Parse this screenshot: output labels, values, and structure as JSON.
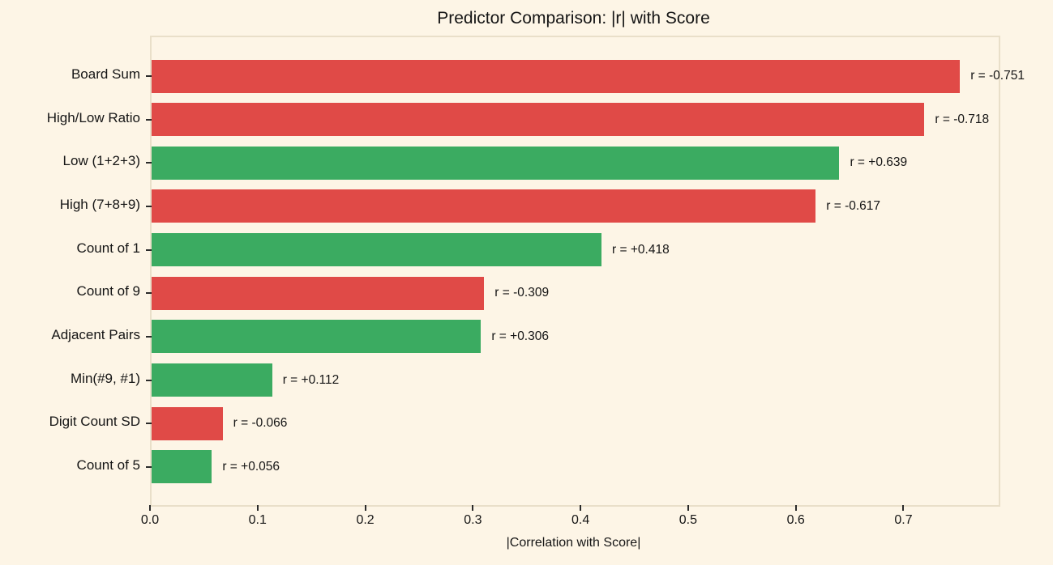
{
  "title": "Predictor Comparison: |r| with Score",
  "colors": {
    "positive_bar": "#3bab61",
    "negative_bar": "#e04a47",
    "background": "#fdf5e6",
    "plot_border": "#e9dfc9",
    "text": "#151515"
  },
  "chart_data": {
    "type": "bar",
    "orientation": "horizontal",
    "title": "Predictor Comparison: |r| with Score",
    "xlabel": "|Correlation with Score|",
    "ylabel": "",
    "xlim": [
      0.0,
      0.787
    ],
    "xticks": [
      "0.0",
      "0.1",
      "0.2",
      "0.3",
      "0.4",
      "0.5",
      "0.6",
      "0.7"
    ],
    "grid": false,
    "legend": "none",
    "categories": [
      "Board Sum",
      "High/Low Ratio",
      "Low (1+2+3)",
      "High (7+8+9)",
      "Count of 1",
      "Count of 9",
      "Adjacent Pairs",
      "Min(#9, #1)",
      "Digit Count SD",
      "Count of 5"
    ],
    "values": [
      0.751,
      0.718,
      0.639,
      0.617,
      0.418,
      0.309,
      0.306,
      0.112,
      0.066,
      0.056
    ],
    "r_values": [
      -0.751,
      -0.718,
      0.639,
      -0.617,
      0.418,
      -0.309,
      0.306,
      0.112,
      -0.066,
      0.056
    ],
    "bar_labels": [
      "r = -0.751",
      "r = -0.718",
      "r = +0.639",
      "r = -0.617",
      "r = +0.418",
      "r = -0.309",
      "r = +0.306",
      "r = +0.112",
      "r = -0.066",
      "r = +0.056"
    ],
    "color_rule": "green if r positive, red if r negative"
  }
}
